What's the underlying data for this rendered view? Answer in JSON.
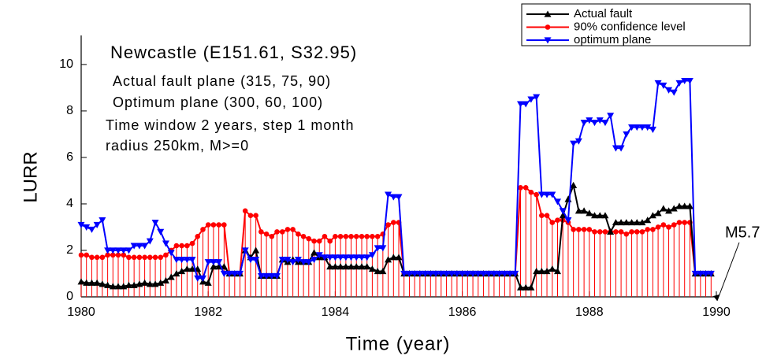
{
  "chart_data": {
    "type": "line",
    "xlabel": "Time (year)",
    "ylabel": "LURR",
    "annotations": [
      "Newcastle (E151.61, S32.95)",
      "Actual fault plane (315, 75, 90)",
      "Optimum plane (300, 60, 100)",
      "Time window 2 years, step 1 month",
      "radius 250km, M>=0",
      "M5.7"
    ],
    "xlim": [
      1980,
      1990
    ],
    "xticks": [
      1980,
      1982,
      1984,
      1986,
      1988,
      1990
    ],
    "ylim": [
      0,
      11.25
    ],
    "yticks": [
      0,
      2,
      4,
      6,
      8,
      10
    ],
    "legend": "top-right",
    "x": [
      1980,
      1980.083,
      1980.167,
      1980.25,
      1980.333,
      1980.417,
      1980.5,
      1980.583,
      1980.667,
      1980.75,
      1980.833,
      1980.917,
      1981,
      1981.083,
      1981.167,
      1981.25,
      1981.333,
      1981.417,
      1981.5,
      1981.583,
      1981.667,
      1981.75,
      1981.833,
      1981.917,
      1982,
      1982.083,
      1982.167,
      1982.25,
      1982.333,
      1982.417,
      1982.5,
      1982.583,
      1982.667,
      1982.75,
      1982.833,
      1982.917,
      1983,
      1983.083,
      1983.167,
      1983.25,
      1983.333,
      1983.417,
      1983.5,
      1983.583,
      1983.667,
      1983.75,
      1983.833,
      1983.917,
      1984,
      1984.083,
      1984.167,
      1984.25,
      1984.333,
      1984.417,
      1984.5,
      1984.583,
      1984.667,
      1984.75,
      1984.833,
      1984.917,
      1985,
      1985.083,
      1985.167,
      1985.25,
      1985.333,
      1985.417,
      1985.5,
      1985.583,
      1985.667,
      1985.75,
      1985.833,
      1985.917,
      1986,
      1986.083,
      1986.167,
      1986.25,
      1986.333,
      1986.417,
      1986.5,
      1986.583,
      1986.667,
      1986.75,
      1986.833,
      1986.917,
      1987,
      1987.083,
      1987.167,
      1987.25,
      1987.333,
      1987.417,
      1987.5,
      1987.583,
      1987.667,
      1987.75,
      1987.833,
      1987.917,
      1988,
      1988.083,
      1988.167,
      1988.25,
      1988.333,
      1988.417,
      1988.5,
      1988.583,
      1988.667,
      1988.75,
      1988.833,
      1988.917,
      1989,
      1989.083,
      1989.167,
      1989.25,
      1989.333,
      1989.417,
      1989.5,
      1989.583,
      1989.667,
      1989.75,
      1989.833,
      1989.917
    ],
    "series": [
      {
        "name": "Actual fault",
        "color": "#000000",
        "marker": "triangle-up",
        "values": [
          0.65,
          0.6,
          0.6,
          0.6,
          0.55,
          0.5,
          0.45,
          0.45,
          0.45,
          0.5,
          0.5,
          0.55,
          0.6,
          0.55,
          0.55,
          0.6,
          0.7,
          0.85,
          1.0,
          1.1,
          1.2,
          1.2,
          1.2,
          0.65,
          0.6,
          1.3,
          1.3,
          1.3,
          1.0,
          1.0,
          1.0,
          2.0,
          1.7,
          2.0,
          0.9,
          0.9,
          0.9,
          0.9,
          1.6,
          1.5,
          1.6,
          1.5,
          1.5,
          1.5,
          1.9,
          1.7,
          1.7,
          1.3,
          1.3,
          1.3,
          1.3,
          1.3,
          1.3,
          1.3,
          1.3,
          1.2,
          1.1,
          1.1,
          1.6,
          1.7,
          1.7,
          1.0,
          1.0,
          1.0,
          1.0,
          1.0,
          1.0,
          1.0,
          1.0,
          1.0,
          1.0,
          1.0,
          1.0,
          1.0,
          1.0,
          1.0,
          1.0,
          1.0,
          1.0,
          1.0,
          1.0,
          1.0,
          1.0,
          0.4,
          0.4,
          0.4,
          1.1,
          1.1,
          1.1,
          1.2,
          1.1,
          3.5,
          4.2,
          4.8,
          3.7,
          3.7,
          3.6,
          3.5,
          3.5,
          3.5,
          2.8,
          3.2,
          3.2,
          3.2,
          3.2,
          3.2,
          3.2,
          3.3,
          3.5,
          3.6,
          3.8,
          3.7,
          3.8,
          3.9,
          3.9,
          3.9,
          1.0,
          1.0,
          1.0,
          1.0
        ]
      },
      {
        "name": "90% confidence level",
        "color": "#ff0000",
        "marker": "circle",
        "stems": true,
        "values": [
          1.8,
          1.8,
          1.7,
          1.7,
          1.7,
          1.8,
          1.8,
          1.8,
          1.8,
          1.7,
          1.7,
          1.7,
          1.7,
          1.7,
          1.7,
          1.7,
          1.8,
          2.0,
          2.2,
          2.2,
          2.2,
          2.3,
          2.6,
          2.9,
          3.1,
          3.1,
          3.1,
          3.1,
          1.0,
          1.0,
          1.0,
          3.7,
          3.5,
          3.5,
          2.8,
          2.7,
          2.6,
          2.8,
          2.8,
          2.9,
          2.9,
          2.7,
          2.6,
          2.5,
          2.4,
          2.4,
          2.6,
          2.4,
          2.6,
          2.6,
          2.6,
          2.6,
          2.6,
          2.6,
          2.6,
          2.6,
          2.6,
          2.7,
          3.1,
          3.2,
          3.2,
          1.0,
          1.0,
          1.0,
          1.0,
          1.0,
          1.0,
          1.0,
          1.0,
          1.0,
          1.0,
          1.0,
          1.0,
          1.0,
          1.0,
          1.0,
          1.0,
          1.0,
          1.0,
          1.0,
          1.0,
          1.0,
          1.0,
          4.7,
          4.7,
          4.5,
          4.4,
          3.5,
          3.5,
          3.2,
          3.3,
          3.3,
          3.2,
          2.9,
          2.9,
          2.9,
          2.9,
          2.8,
          2.8,
          2.8,
          2.8,
          2.8,
          2.8,
          2.7,
          2.8,
          2.8,
          2.8,
          2.9,
          2.9,
          3.0,
          3.1,
          3.0,
          3.1,
          3.2,
          3.2,
          3.2,
          1.0,
          1.0,
          1.0,
          1.0
        ]
      },
      {
        "name": "optimum plane",
        "color": "#0000ff",
        "marker": "triangle-down",
        "values": [
          3.1,
          3.0,
          2.9,
          3.1,
          3.3,
          2.0,
          2.0,
          2.0,
          2.0,
          2.0,
          2.2,
          2.2,
          2.2,
          2.4,
          3.2,
          2.8,
          2.3,
          1.9,
          1.6,
          1.6,
          1.6,
          1.6,
          0.8,
          0.8,
          1.5,
          1.5,
          1.5,
          1.0,
          1.0,
          1.0,
          1.0,
          2.0,
          1.6,
          1.6,
          0.9,
          0.9,
          0.9,
          0.9,
          1.6,
          1.6,
          1.5,
          1.6,
          1.5,
          1.5,
          1.6,
          1.8,
          1.7,
          1.7,
          1.7,
          1.7,
          1.7,
          1.7,
          1.7,
          1.7,
          1.7,
          1.8,
          2.1,
          2.1,
          4.4,
          4.3,
          4.3,
          1.0,
          1.0,
          1.0,
          1.0,
          1.0,
          1.0,
          1.0,
          1.0,
          1.0,
          1.0,
          1.0,
          1.0,
          1.0,
          1.0,
          1.0,
          1.0,
          1.0,
          1.0,
          1.0,
          1.0,
          1.0,
          1.0,
          8.3,
          8.3,
          8.5,
          8.6,
          4.4,
          4.4,
          4.4,
          4.1,
          3.7,
          3.3,
          6.6,
          6.7,
          7.5,
          7.6,
          7.5,
          7.6,
          7.5,
          7.8,
          6.4,
          6.4,
          7.0,
          7.3,
          7.3,
          7.3,
          7.3,
          7.2,
          9.2,
          9.1,
          8.9,
          8.8,
          9.2,
          9.3,
          9.3,
          1.0,
          1.0,
          1.0,
          1.0
        ]
      }
    ]
  }
}
